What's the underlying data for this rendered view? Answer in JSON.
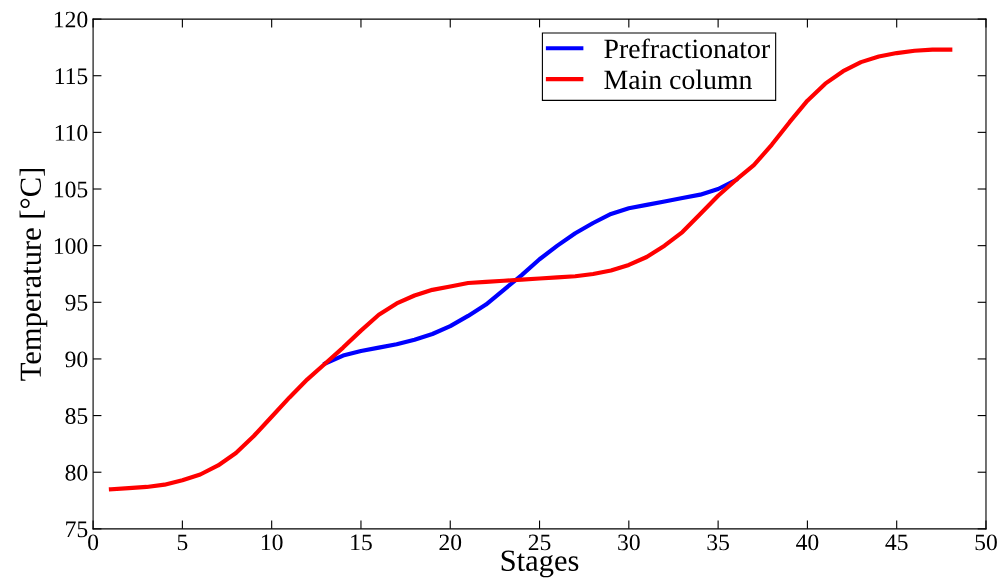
{
  "chart_data": {
    "type": "line",
    "xlabel": "Stages",
    "ylabel": "Temperature [°C]",
    "xlim": [
      0,
      50
    ],
    "xticks": [
      0,
      5,
      10,
      15,
      20,
      25,
      30,
      35,
      40,
      45,
      50
    ],
    "ylim": [
      75,
      120
    ],
    "yticks": [
      75,
      80,
      85,
      90,
      95,
      100,
      105,
      110,
      115,
      120
    ],
    "grid": false,
    "legend": "top right",
    "marker": "none",
    "line_style": "solid",
    "series": [
      {
        "name": "Prefractionator",
        "color": "#0000ff",
        "x": [
          13,
          14,
          15,
          16,
          17,
          18,
          19,
          20,
          21,
          22,
          23,
          24,
          25,
          26,
          27,
          28,
          29,
          30,
          31,
          32,
          33,
          34,
          35,
          36
        ],
        "values": [
          89.6,
          90.3,
          90.7,
          91.0,
          91.3,
          91.7,
          92.2,
          92.9,
          93.8,
          94.8,
          96.1,
          97.4,
          98.8,
          100.0,
          101.1,
          102.0,
          102.8,
          103.3,
          103.6,
          103.9,
          104.2,
          104.5,
          105.0,
          105.8
        ]
      },
      {
        "name": "Main column",
        "color": "#ff0000",
        "x": [
          1,
          2,
          3,
          4,
          5,
          6,
          7,
          8,
          9,
          10,
          11,
          12,
          13,
          14,
          15,
          16,
          17,
          18,
          19,
          20,
          21,
          22,
          23,
          24,
          25,
          26,
          27,
          28,
          29,
          30,
          31,
          32,
          33,
          34,
          35,
          36,
          37,
          38,
          39,
          40,
          41,
          42,
          43,
          44,
          45,
          46,
          47,
          48
        ],
        "values": [
          78.5,
          78.6,
          78.7,
          78.9,
          79.3,
          79.8,
          80.6,
          81.7,
          83.2,
          84.9,
          86.6,
          88.2,
          89.6,
          91.0,
          92.5,
          93.9,
          94.9,
          95.6,
          96.1,
          96.4,
          96.7,
          96.8,
          96.9,
          97.0,
          97.1,
          97.2,
          97.3,
          97.5,
          97.8,
          98.3,
          99.0,
          100.0,
          101.2,
          102.8,
          104.4,
          105.8,
          107.1,
          108.9,
          110.9,
          112.8,
          114.3,
          115.4,
          116.2,
          116.7,
          117.0,
          117.2,
          117.3,
          117.3
        ]
      }
    ]
  }
}
